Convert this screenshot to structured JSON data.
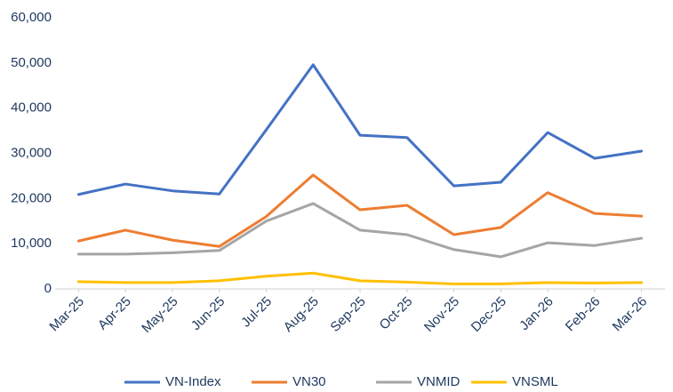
{
  "chart_data": {
    "type": "line",
    "categories": [
      "Mar-25",
      "Apr-25",
      "May-25",
      "Jun-25",
      "Jul-25",
      "Aug-25",
      "Sep-25",
      "Oct-25",
      "Nov-25",
      "Dec-25",
      "Jan-26",
      "Feb-26",
      "Mar-26"
    ],
    "series": [
      {
        "name": "VN-Index",
        "color": "#4472c4",
        "values": [
          20900,
          23200,
          21700,
          21000,
          35200,
          49600,
          34000,
          33500,
          22800,
          23600,
          34600,
          28900,
          30500
        ]
      },
      {
        "name": "VN30",
        "color": "#ed7d31",
        "values": [
          10600,
          13000,
          10800,
          9400,
          16000,
          25200,
          17500,
          18500,
          12000,
          13600,
          21300,
          16700,
          16100
        ]
      },
      {
        "name": "VNMID",
        "color": "#a5a5a5",
        "values": [
          7700,
          7700,
          8000,
          8500,
          15000,
          18900,
          13000,
          12000,
          8700,
          7100,
          10200,
          9600,
          11200
        ]
      },
      {
        "name": "VNSML",
        "color": "#ffc000",
        "values": [
          1600,
          1400,
          1400,
          1800,
          2800,
          3500,
          1800,
          1500,
          1100,
          1100,
          1400,
          1300,
          1400
        ]
      }
    ],
    "ylim": [
      0,
      60000
    ],
    "yticks": [
      0,
      {
        "value": 10000,
        "label": "10,000"
      },
      {
        "value": 20000,
        "label": "20,000"
      },
      {
        "value": 30000,
        "label": "30,000"
      },
      {
        "value": 40000,
        "label": "40,000"
      },
      {
        "value": 50000,
        "label": "50,000"
      },
      {
        "value": 60000,
        "label": "60,000"
      }
    ],
    "grid": false,
    "legend": "bottom"
  }
}
